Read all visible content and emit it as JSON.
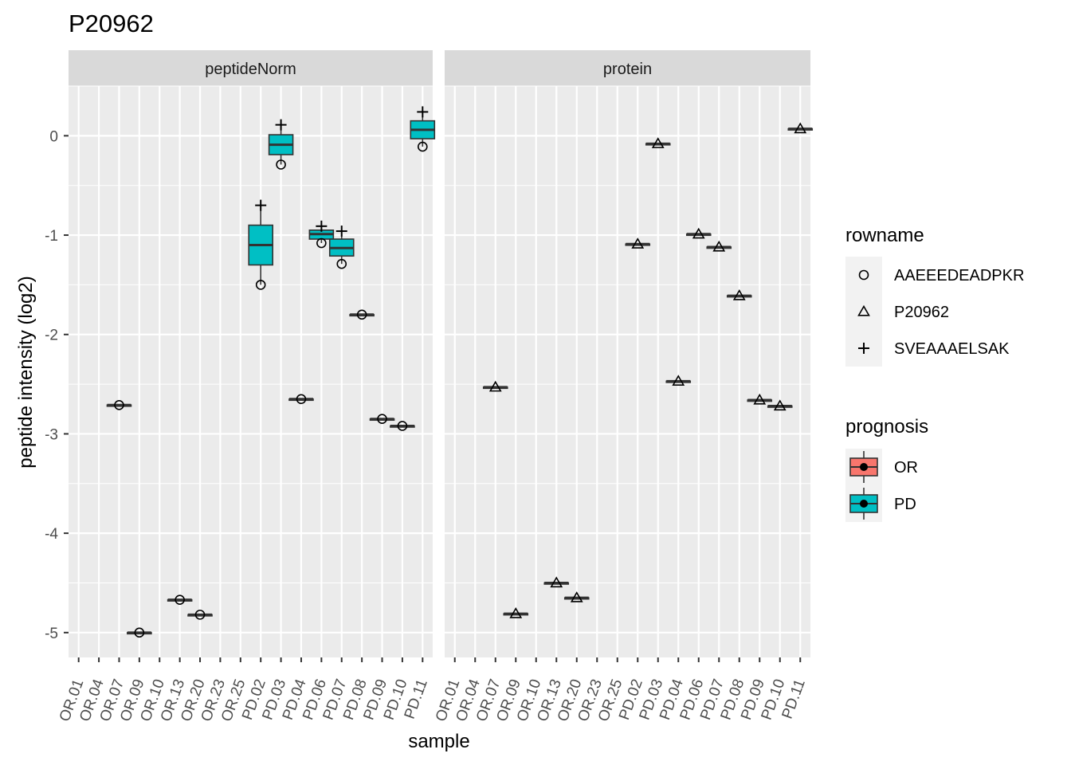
{
  "chart_data": {
    "type": "boxplot",
    "title": "P20962",
    "xlabel": "sample",
    "ylabel": "peptide intensity (log2)",
    "ylim": [
      -5.25,
      0.5
    ],
    "yticks": [
      0,
      -1,
      -2,
      -3,
      -4,
      -5
    ],
    "categories": [
      "OR.01",
      "OR.04",
      "OR.07",
      "OR.09",
      "OR.10",
      "OR.13",
      "OR.20",
      "OR.23",
      "OR.25",
      "PD.02",
      "PD.03",
      "PD.04",
      "PD.06",
      "PD.07",
      "PD.08",
      "PD.09",
      "PD.10",
      "PD.11"
    ],
    "grid": true,
    "legend_position": "right",
    "facets": [
      {
        "name": "peptideNorm",
        "samples": [
          {
            "sample": "OR.07",
            "prognosis": "OR",
            "q1": -2.71,
            "median": -2.71,
            "q3": -2.71,
            "lower": -2.71,
            "upper": -2.71,
            "points": [
              {
                "peptide": "AAEEEDEADPKR",
                "y": -2.71
              }
            ]
          },
          {
            "sample": "OR.09",
            "prognosis": "OR",
            "q1": -5.0,
            "median": -5.0,
            "q3": -5.0,
            "lower": -5.0,
            "upper": -5.0,
            "points": [
              {
                "peptide": "AAEEEDEADPKR",
                "y": -5.0
              }
            ]
          },
          {
            "sample": "OR.13",
            "prognosis": "OR",
            "q1": -4.67,
            "median": -4.67,
            "q3": -4.67,
            "lower": -4.67,
            "upper": -4.67,
            "points": [
              {
                "peptide": "AAEEEDEADPKR",
                "y": -4.67
              }
            ]
          },
          {
            "sample": "OR.20",
            "prognosis": "OR",
            "q1": -4.82,
            "median": -4.82,
            "q3": -4.82,
            "lower": -4.82,
            "upper": -4.82,
            "points": [
              {
                "peptide": "AAEEEDEADPKR",
                "y": -4.82
              }
            ]
          },
          {
            "sample": "PD.02",
            "prognosis": "PD",
            "q1": -1.3,
            "median": -1.1,
            "q3": -0.9,
            "lower": -1.5,
            "upper": -0.7,
            "points": [
              {
                "peptide": "AAEEEDEADPKR",
                "y": -1.5
              },
              {
                "peptide": "SVEAAAELSAK",
                "y": -0.7
              }
            ]
          },
          {
            "sample": "PD.03",
            "prognosis": "PD",
            "q1": -0.19,
            "median": -0.09,
            "q3": 0.01,
            "lower": -0.29,
            "upper": 0.11,
            "points": [
              {
                "peptide": "AAEEEDEADPKR",
                "y": -0.29
              },
              {
                "peptide": "SVEAAAELSAK",
                "y": 0.11
              }
            ]
          },
          {
            "sample": "PD.04",
            "prognosis": "PD",
            "q1": -2.65,
            "median": -2.65,
            "q3": -2.65,
            "lower": -2.65,
            "upper": -2.65,
            "points": [
              {
                "peptide": "AAEEEDEADPKR",
                "y": -2.65
              }
            ]
          },
          {
            "sample": "PD.06",
            "prognosis": "PD",
            "q1": -1.04,
            "median": -0.99,
            "q3": -0.95,
            "lower": -1.08,
            "upper": -0.91,
            "points": [
              {
                "peptide": "AAEEEDEADPKR",
                "y": -1.08
              },
              {
                "peptide": "SVEAAAELSAK",
                "y": -0.91
              }
            ]
          },
          {
            "sample": "PD.07",
            "prognosis": "PD",
            "q1": -1.21,
            "median": -1.13,
            "q3": -1.04,
            "lower": -1.29,
            "upper": -0.96,
            "points": [
              {
                "peptide": "AAEEEDEADPKR",
                "y": -1.29
              },
              {
                "peptide": "SVEAAAELSAK",
                "y": -0.96
              }
            ]
          },
          {
            "sample": "PD.08",
            "prognosis": "PD",
            "q1": -1.8,
            "median": -1.8,
            "q3": -1.8,
            "lower": -1.8,
            "upper": -1.8,
            "points": [
              {
                "peptide": "AAEEEDEADPKR",
                "y": -1.8
              }
            ]
          },
          {
            "sample": "PD.09",
            "prognosis": "PD",
            "q1": -2.85,
            "median": -2.85,
            "q3": -2.85,
            "lower": -2.85,
            "upper": -2.85,
            "points": [
              {
                "peptide": "AAEEEDEADPKR",
                "y": -2.85
              }
            ]
          },
          {
            "sample": "PD.10",
            "prognosis": "PD",
            "q1": -2.92,
            "median": -2.92,
            "q3": -2.92,
            "lower": -2.92,
            "upper": -2.92,
            "points": [
              {
                "peptide": "AAEEEDEADPKR",
                "y": -2.92
              }
            ]
          },
          {
            "sample": "PD.11",
            "prognosis": "PD",
            "q1": -0.03,
            "median": 0.06,
            "q3": 0.15,
            "lower": -0.11,
            "upper": 0.24,
            "points": [
              {
                "peptide": "AAEEEDEADPKR",
                "y": -0.11
              },
              {
                "peptide": "SVEAAAELSAK",
                "y": 0.24
              }
            ]
          }
        ]
      },
      {
        "name": "protein",
        "samples": [
          {
            "sample": "OR.07",
            "prognosis": "OR",
            "q1": -2.53,
            "median": -2.53,
            "q3": -2.53,
            "lower": -2.53,
            "upper": -2.53,
            "points": [
              {
                "peptide": "P20962",
                "y": -2.53
              }
            ]
          },
          {
            "sample": "OR.09",
            "prognosis": "OR",
            "q1": -4.81,
            "median": -4.81,
            "q3": -4.81,
            "lower": -4.81,
            "upper": -4.81,
            "points": [
              {
                "peptide": "P20962",
                "y": -4.81
              }
            ]
          },
          {
            "sample": "OR.13",
            "prognosis": "OR",
            "q1": -4.5,
            "median": -4.5,
            "q3": -4.5,
            "lower": -4.5,
            "upper": -4.5,
            "points": [
              {
                "peptide": "P20962",
                "y": -4.5
              }
            ]
          },
          {
            "sample": "OR.20",
            "prognosis": "OR",
            "q1": -4.65,
            "median": -4.65,
            "q3": -4.65,
            "lower": -4.65,
            "upper": -4.65,
            "points": [
              {
                "peptide": "P20962",
                "y": -4.65
              }
            ]
          },
          {
            "sample": "PD.02",
            "prognosis": "PD",
            "q1": -1.09,
            "median": -1.09,
            "q3": -1.09,
            "lower": -1.09,
            "upper": -1.09,
            "points": [
              {
                "peptide": "P20962",
                "y": -1.09
              }
            ]
          },
          {
            "sample": "PD.03",
            "prognosis": "PD",
            "q1": -0.08,
            "median": -0.08,
            "q3": -0.08,
            "lower": -0.08,
            "upper": -0.08,
            "points": [
              {
                "peptide": "P20962",
                "y": -0.08
              }
            ]
          },
          {
            "sample": "PD.04",
            "prognosis": "PD",
            "q1": -2.47,
            "median": -2.47,
            "q3": -2.47,
            "lower": -2.47,
            "upper": -2.47,
            "points": [
              {
                "peptide": "P20962",
                "y": -2.47
              }
            ]
          },
          {
            "sample": "PD.06",
            "prognosis": "PD",
            "q1": -0.99,
            "median": -0.99,
            "q3": -0.99,
            "lower": -0.99,
            "upper": -0.99,
            "points": [
              {
                "peptide": "P20962",
                "y": -0.99
              }
            ]
          },
          {
            "sample": "PD.07",
            "prognosis": "PD",
            "q1": -1.12,
            "median": -1.12,
            "q3": -1.12,
            "lower": -1.12,
            "upper": -1.12,
            "points": [
              {
                "peptide": "P20962",
                "y": -1.12
              }
            ]
          },
          {
            "sample": "PD.08",
            "prognosis": "PD",
            "q1": -1.61,
            "median": -1.61,
            "q3": -1.61,
            "lower": -1.61,
            "upper": -1.61,
            "points": [
              {
                "peptide": "P20962",
                "y": -1.61
              }
            ]
          },
          {
            "sample": "PD.09",
            "prognosis": "PD",
            "q1": -2.66,
            "median": -2.66,
            "q3": -2.66,
            "lower": -2.66,
            "upper": -2.66,
            "points": [
              {
                "peptide": "P20962",
                "y": -2.66
              }
            ]
          },
          {
            "sample": "PD.10",
            "prognosis": "PD",
            "q1": -2.72,
            "median": -2.72,
            "q3": -2.72,
            "lower": -2.72,
            "upper": -2.72,
            "points": [
              {
                "peptide": "P20962",
                "y": -2.72
              }
            ]
          },
          {
            "sample": "PD.11",
            "prognosis": "PD",
            "q1": 0.07,
            "median": 0.07,
            "q3": 0.07,
            "lower": 0.07,
            "upper": 0.07,
            "points": [
              {
                "peptide": "P20962",
                "y": 0.07
              }
            ]
          }
        ]
      }
    ],
    "legend_rowname": {
      "title": "rowname",
      "items": [
        {
          "label": "AAEEEDEADPKR",
          "shape": "circle"
        },
        {
          "label": "P20962",
          "shape": "triangle"
        },
        {
          "label": "SVEAAAELSAK",
          "shape": "plus"
        }
      ]
    },
    "legend_prognosis": {
      "title": "prognosis",
      "items": [
        {
          "label": "OR",
          "color": "#F8766D"
        },
        {
          "label": "PD",
          "color": "#00BFC4"
        }
      ]
    },
    "colors": {
      "panel_bg": "#EBEBEB",
      "strip_bg": "#D9D9D9",
      "grid": "#FFFFFF",
      "OR": "#F8766D",
      "PD": "#00BFC4"
    }
  }
}
